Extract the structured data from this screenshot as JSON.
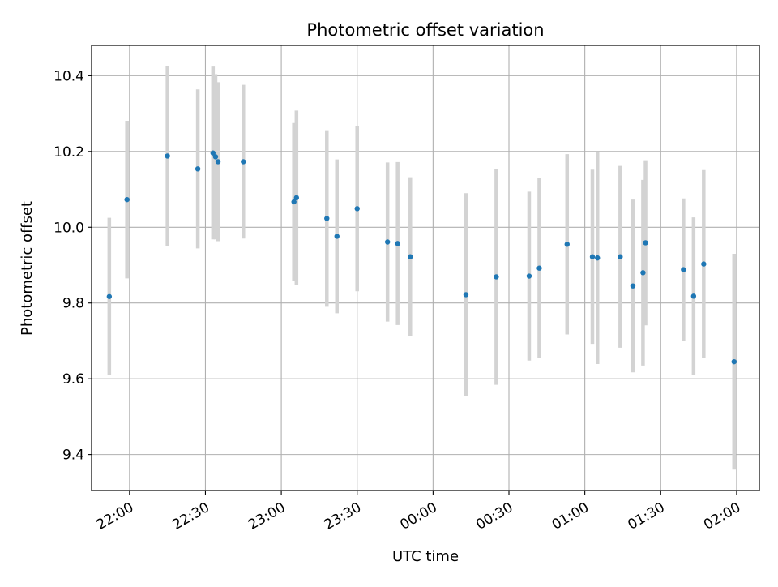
{
  "chart_data": {
    "type": "scatter",
    "title": "Photometric offset variation",
    "xlabel": "UTC time",
    "ylabel": "Photometric offset",
    "grid": true,
    "xlim": [
      "21:45",
      "02:09"
    ],
    "ylim": [
      9.305,
      10.48
    ],
    "x_ticks": [
      "22:00",
      "22:30",
      "23:00",
      "23:30",
      "00:00",
      "00:30",
      "01:00",
      "01:30",
      "02:00"
    ],
    "y_ticks": [
      "9.4",
      "9.6",
      "9.8",
      "10.0",
      "10.2",
      "10.4"
    ],
    "series": [
      {
        "marker_color": "#1f77b4",
        "errorbar_color": "#d3d3d3",
        "points": [
          {
            "t": "21:52",
            "y": 9.817,
            "err": 0.208
          },
          {
            "t": "21:59",
            "y": 10.073,
            "err": 0.208
          },
          {
            "t": "22:15",
            "y": 10.188,
            "err": 0.238
          },
          {
            "t": "22:27",
            "y": 10.154,
            "err": 0.21
          },
          {
            "t": "22:33",
            "y": 10.196,
            "err": 0.228
          },
          {
            "t": "22:34",
            "y": 10.186,
            "err": 0.218
          },
          {
            "t": "22:35",
            "y": 10.173,
            "err": 0.21
          },
          {
            "t": "22:45",
            "y": 10.173,
            "err": 0.203
          },
          {
            "t": "23:05",
            "y": 10.067,
            "err": 0.208
          },
          {
            "t": "23:06",
            "y": 10.078,
            "err": 0.23
          },
          {
            "t": "23:18",
            "y": 10.023,
            "err": 0.233
          },
          {
            "t": "23:22",
            "y": 9.976,
            "err": 0.203
          },
          {
            "t": "23:30",
            "y": 10.049,
            "err": 0.218
          },
          {
            "t": "23:42",
            "y": 9.961,
            "err": 0.21
          },
          {
            "t": "23:46",
            "y": 9.957,
            "err": 0.215
          },
          {
            "t": "23:51",
            "y": 9.922,
            "err": 0.21
          },
          {
            "t": "00:13",
            "y": 9.822,
            "err": 0.268
          },
          {
            "t": "00:25",
            "y": 9.869,
            "err": 0.285
          },
          {
            "t": "00:38",
            "y": 9.871,
            "err": 0.223
          },
          {
            "t": "00:42",
            "y": 9.892,
            "err": 0.238
          },
          {
            "t": "00:53",
            "y": 9.955,
            "err": 0.238
          },
          {
            "t": "01:03",
            "y": 9.922,
            "err": 0.23
          },
          {
            "t": "01:05",
            "y": 9.919,
            "err": 0.28
          },
          {
            "t": "01:14",
            "y": 9.922,
            "err": 0.24
          },
          {
            "t": "01:19",
            "y": 9.845,
            "err": 0.228
          },
          {
            "t": "01:23",
            "y": 9.88,
            "err": 0.245
          },
          {
            "t": "01:24",
            "y": 9.959,
            "err": 0.218
          },
          {
            "t": "01:39",
            "y": 9.888,
            "err": 0.188
          },
          {
            "t": "01:43",
            "y": 9.818,
            "err": 0.208
          },
          {
            "t": "01:47",
            "y": 9.903,
            "err": 0.248
          },
          {
            "t": "01:59",
            "y": 9.645,
            "err": 0.285
          }
        ]
      }
    ]
  }
}
